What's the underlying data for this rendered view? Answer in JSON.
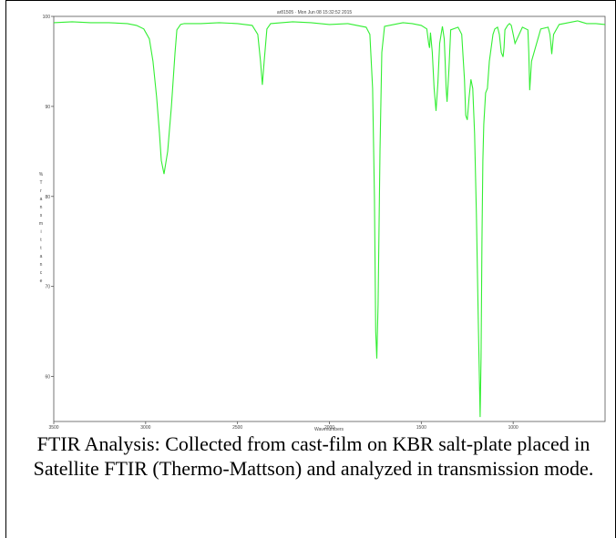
{
  "chart_data": {
    "type": "line",
    "title": "ar81505 · Mon Jun 08 15:32:52 2015",
    "xlabel": "Wavenumbers",
    "ylabel": "% Transmittance",
    "xlim": [
      3500,
      500
    ],
    "ylim": [
      55,
      100
    ],
    "xticks": [
      3500,
      3000,
      2500,
      2000,
      1500,
      1000
    ],
    "yticks": [
      100,
      90,
      80,
      70,
      60
    ],
    "series_color": "#33ee33",
    "grid": false,
    "series": [
      {
        "x": [
          3500,
          3400,
          3300,
          3200,
          3100,
          3050,
          3010,
          2980,
          2960,
          2940,
          2925,
          2915,
          2900,
          2880,
          2860,
          2850,
          2840,
          2830,
          2810,
          2790,
          2700,
          2600,
          2500,
          2420,
          2390,
          2375,
          2365,
          2355,
          2340,
          2320,
          2200,
          2100,
          2000,
          1900,
          1800,
          1780,
          1765,
          1755,
          1748,
          1742,
          1735,
          1725,
          1715,
          1700,
          1650,
          1600,
          1550,
          1500,
          1470,
          1460,
          1455,
          1450,
          1440,
          1430,
          1420,
          1410,
          1400,
          1385,
          1375,
          1370,
          1365,
          1360,
          1350,
          1340,
          1300,
          1280,
          1265,
          1258,
          1250,
          1240,
          1230,
          1220,
          1210,
          1200,
          1190,
          1180,
          1175,
          1170,
          1165,
          1160,
          1150,
          1140,
          1130,
          1120,
          1110,
          1100,
          1085,
          1075,
          1065,
          1055,
          1050,
          1045,
          1030,
          1020,
          1010,
          1000,
          990,
          950,
          920,
          915,
          910,
          900,
          850,
          810,
          800,
          795,
          790,
          780,
          750,
          700,
          650,
          600,
          550,
          500
        ],
        "values": [
          99.3,
          99.4,
          99.3,
          99.3,
          99.2,
          99.0,
          98.6,
          97.5,
          95.0,
          91.0,
          87.0,
          84.0,
          82.5,
          85.0,
          90.0,
          93.0,
          96.0,
          98.5,
          99.1,
          99.2,
          99.2,
          99.3,
          99.2,
          99.0,
          98.0,
          95.0,
          92.4,
          95.0,
          98.6,
          99.2,
          99.4,
          99.3,
          99.1,
          99.2,
          98.8,
          98.0,
          92.0,
          80.0,
          65.0,
          62.0,
          68.0,
          85.0,
          96.0,
          98.9,
          99.1,
          99.3,
          99.2,
          99.0,
          98.6,
          97.0,
          96.5,
          98.2,
          96.0,
          92.0,
          89.5,
          92.5,
          97.0,
          98.9,
          97.5,
          95.0,
          92.0,
          90.5,
          94.0,
          98.5,
          98.8,
          98.0,
          93.0,
          89.0,
          88.5,
          91.0,
          93.0,
          92.0,
          87.0,
          78.0,
          66.0,
          55.5,
          62.0,
          75.0,
          84.0,
          88.0,
          91.5,
          92.0,
          95.0,
          96.5,
          98.0,
          98.6,
          98.8,
          98.0,
          96.0,
          95.5,
          96.5,
          98.5,
          99.0,
          99.2,
          99.0,
          98.0,
          97.0,
          98.8,
          98.5,
          96.0,
          91.8,
          95.0,
          98.6,
          98.8,
          98.0,
          97.0,
          95.8,
          98.0,
          99.1,
          99.3,
          99.5,
          99.2,
          99.2,
          99.1
        ]
      }
    ]
  },
  "caption": "FTIR Analysis: Collected from cast-film on KBR salt-plate placed in Satellite FTIR (Thermo-Mattson) and analyzed in transmission mode."
}
